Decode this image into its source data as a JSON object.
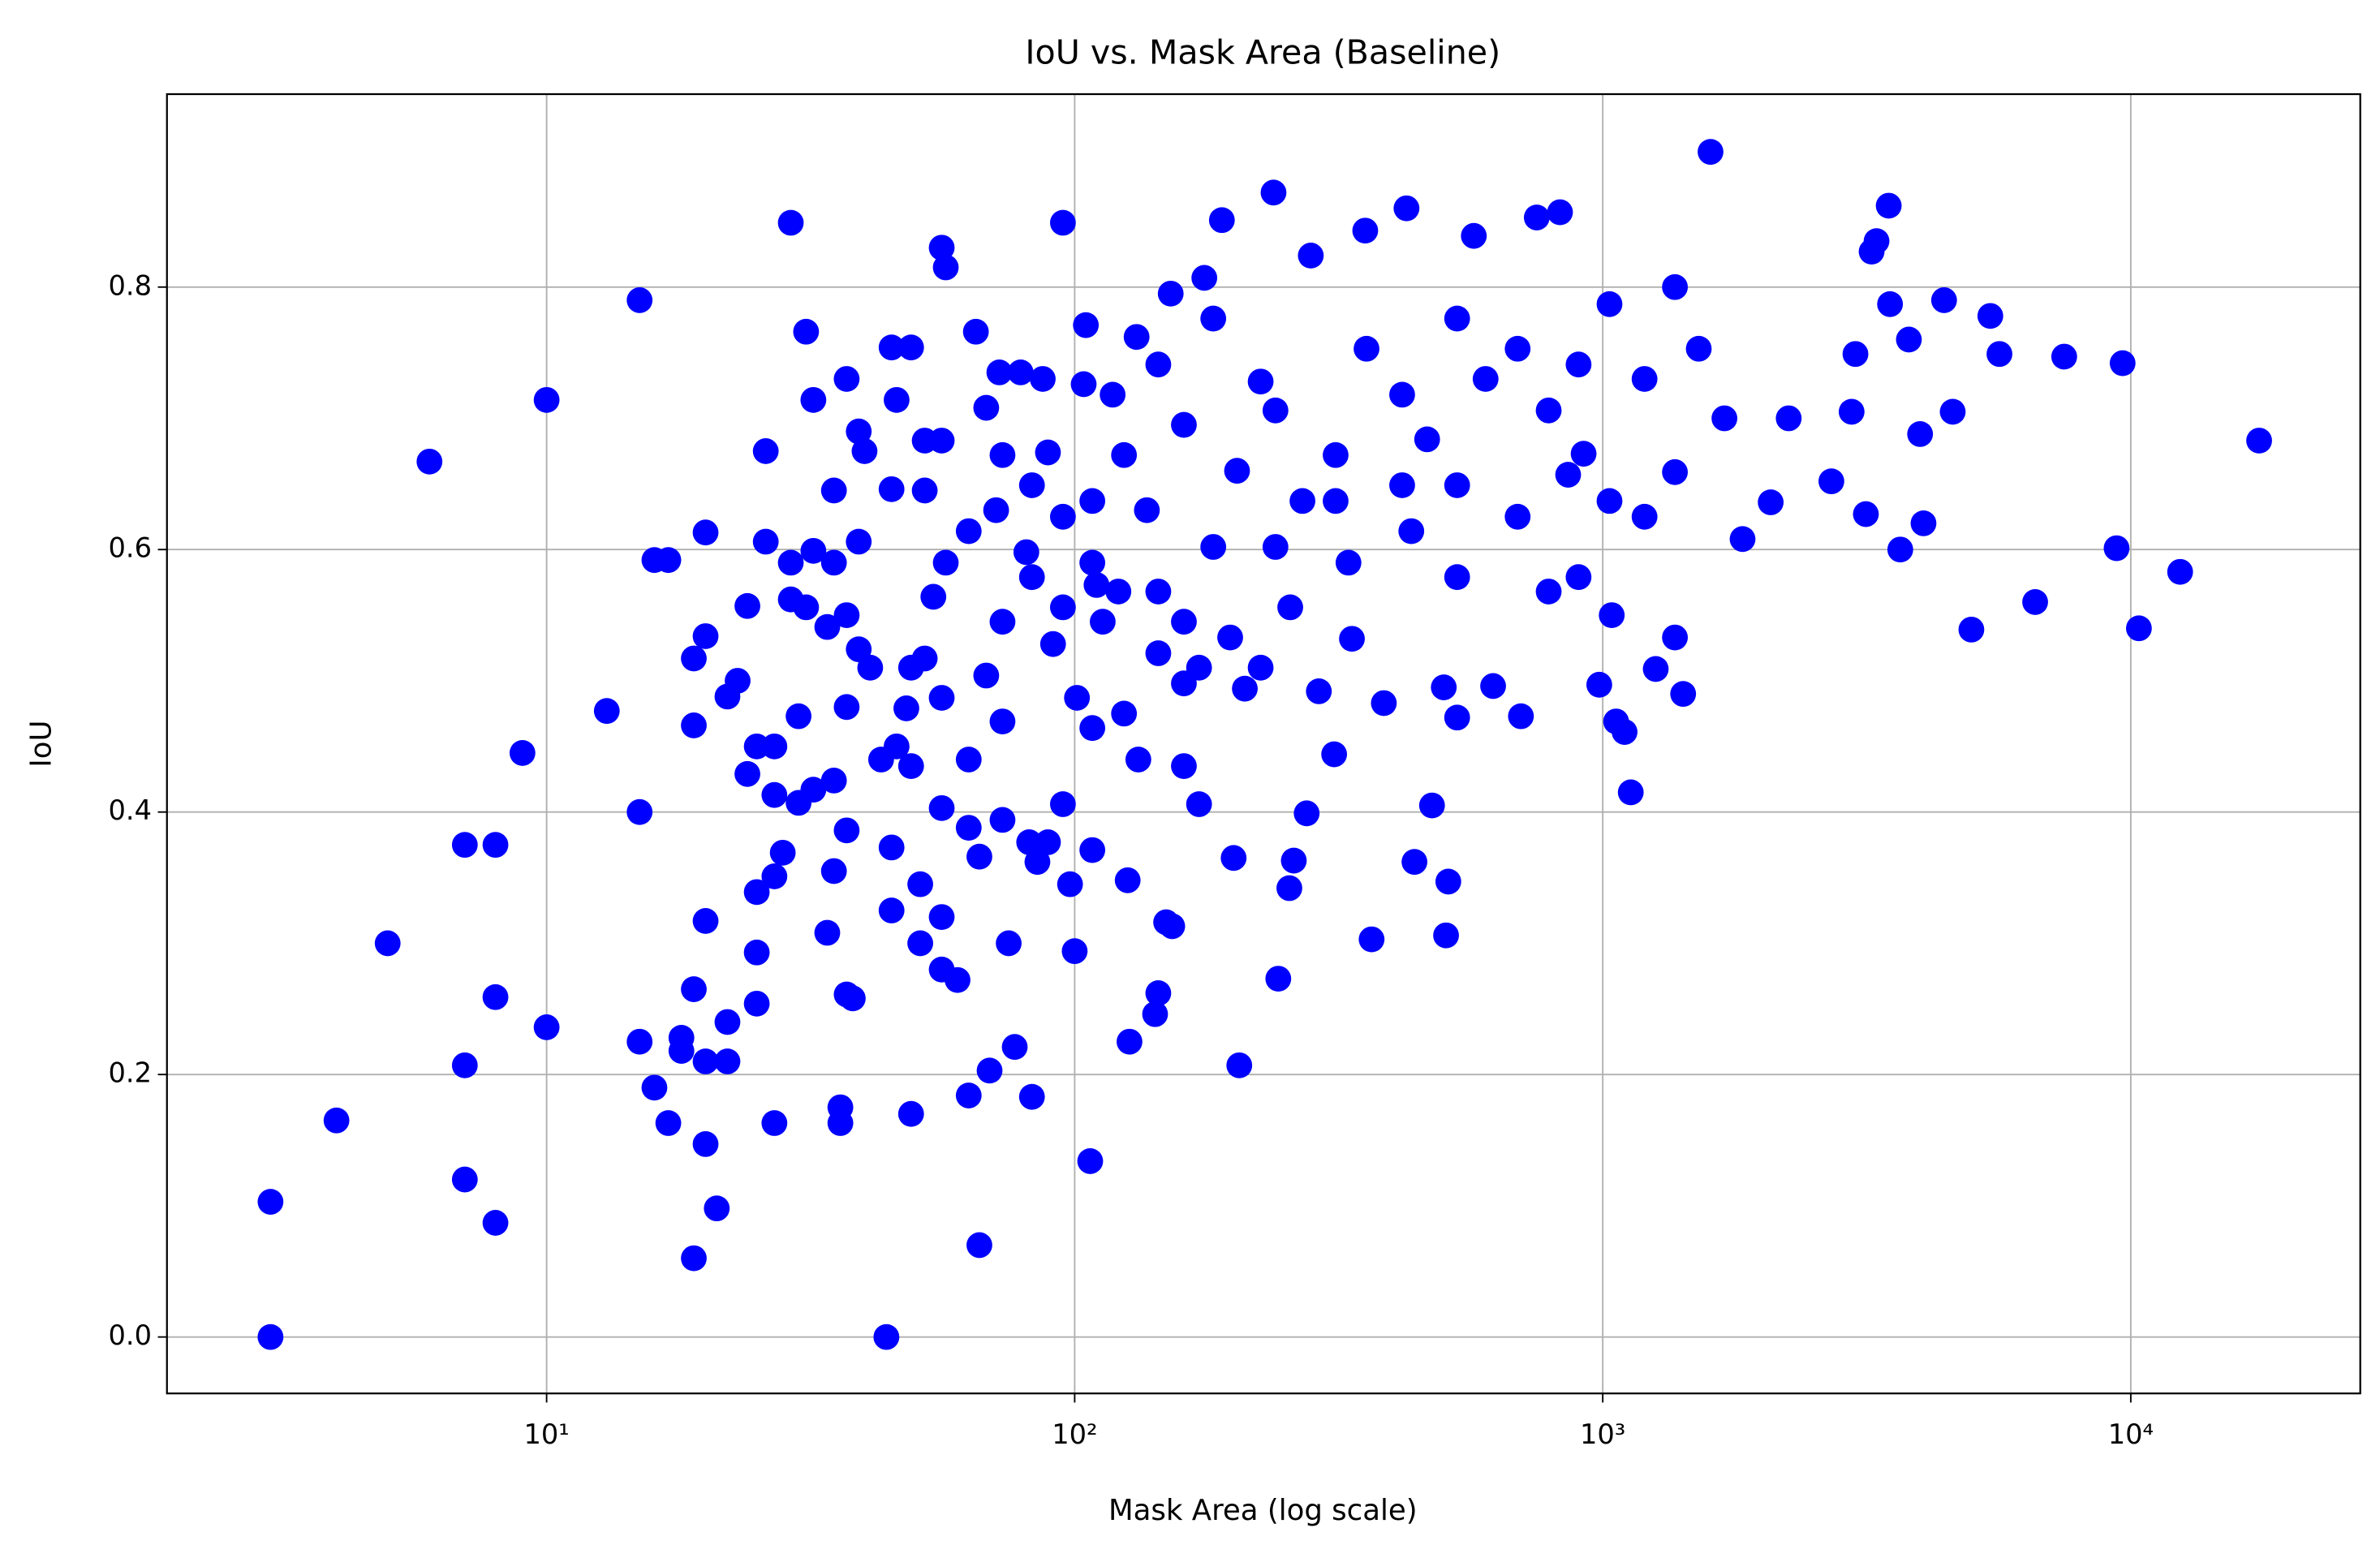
{
  "chart_data": {
    "type": "scatter",
    "title": "IoU vs. Mask Area (Baseline)",
    "xlabel": "Mask Area (log scale)",
    "ylabel": "IoU",
    "xscale": "log",
    "grid": true,
    "color": "#0000ff",
    "xlim": [
      1.91,
      27200
    ],
    "ylim": [
      -0.043,
      0.947
    ],
    "xticks": [
      {
        "value": 10,
        "label": "10¹"
      },
      {
        "value": 100,
        "label": "10²"
      },
      {
        "value": 1000,
        "label": "10³"
      },
      {
        "value": 10000,
        "label": "10⁴"
      }
    ],
    "yticks": [
      {
        "value": 0,
        "label": "0.0"
      },
      0.2,
      0.4,
      0.6,
      0.8
    ],
    "x": [
      3,
      3,
      4,
      5,
      6,
      7,
      7,
      7,
      8,
      8,
      8,
      9,
      10,
      10,
      13,
      15,
      15,
      15,
      16,
      17,
      16,
      17,
      18,
      18,
      19,
      19,
      19,
      19,
      20,
      20,
      20,
      20,
      20,
      21,
      22,
      22,
      22,
      23,
      24,
      24,
      25,
      25,
      25,
      25,
      26,
      26,
      27,
      27,
      27,
      27,
      28,
      29,
      29,
      29,
      30,
      30,
      31,
      31,
      32,
      32,
      32,
      34,
      34,
      35,
      35,
      35,
      35,
      36,
      36,
      37,
      37,
      37,
      37,
      37,
      38,
      39,
      39,
      39,
      40,
      41,
      44,
      45,
      45,
      45,
      45,
      46,
      46,
      48,
      49,
      49,
      49,
      51,
      51,
      52,
      52,
      52,
      54,
      56,
      56,
      56,
      56,
      56,
      57,
      57,
      60,
      63,
      63,
      65,
      66,
      66,
      68,
      68,
      69,
      71,
      72,
      73,
      75,
      77,
      79,
      81,
      82,
      83,
      85,
      87,
      89,
      89,
      91,
      95,
      98,
      100,
      101,
      104,
      105,
      107,
      110,
      113,
      118,
      121,
      126,
      127,
      131,
      137,
      142,
      144,
      149,
      153,
      152,
      161,
      172,
      176,
      190,
      200,
      205,
      210,
      225,
      238,
      243,
      255,
      260,
      275,
      280,
      290,
      310,
      335,
      355,
      365,
      385,
      425,
      440,
      475,
      500,
      510,
      505,
      530,
      570,
      620,
      700,
      750,
      830,
      860,
      920,
      985,
      1040,
      1060,
      1100,
      1130,
      1260,
      1420,
      1600,
      1700,
      1840,
      2080,
      2250,
      2710,
      2960,
      3010,
      3150,
      3230,
      3300,
      3480,
      3500,
      3660,
      3800,
      3990,
      4050,
      4430,
      4600,
      4990,
      5420,
      5640,
      6590,
      7480,
      9400,
      9650,
      10360,
      12400,
      17500,
      108,
      124,
      144,
      161,
      183,
      203,
      240,
      270,
      312,
      357,
      417,
      465,
      530,
      600,
      690,
      790,
      900,
      1030,
      1200,
      1370,
      1520,
      690,
      790,
      530,
      434,
      330,
      256,
      197,
      161,
      144,
      124,
      108,
      95,
      83,
      73,
      63,
      73,
      83,
      95,
      108,
      144,
      183,
      240,
      312,
      417,
      530,
      900,
      1200,
      1370,
      1030,
      1370,
      56,
      49,
      43,
      63,
      73,
      95,
      108,
      132,
      161,
      172,
      225
    ],
    "y": [
      0.103,
      0,
      0.165,
      0.3,
      0.667,
      0.375,
      0.207,
      0.12,
      0.375,
      0.259,
      0.087,
      0.445,
      0.714,
      0.236,
      0.477,
      0.79,
      0.4,
      0.225,
      0.592,
      0.592,
      0.19,
      0.163,
      0.228,
      0.218,
      0.517,
      0.466,
      0.265,
      0.06,
      0.613,
      0.534,
      0.317,
      0.21,
      0.147,
      0.098,
      0.21,
      0.24,
      0.488,
      0.5,
      0.429,
      0.557,
      0.339,
      0.293,
      0.254,
      0.45,
      0.675,
      0.606,
      0.45,
      0.413,
      0.351,
      0.163,
      0.369,
      0.849,
      0.59,
      0.562,
      0.473,
      0.407,
      0.766,
      0.556,
      0.714,
      0.599,
      0.417,
      0.541,
      0.308,
      0.645,
      0.59,
      0.424,
      0.355,
      0.175,
      0.163,
      0.73,
      0.55,
      0.48,
      0.386,
      0.261,
      0.258,
      0.69,
      0.606,
      0.524,
      0.675,
      0.51,
      0,
      0.754,
      0.646,
      0.373,
      0.325,
      0.714,
      0.45,
      0.479,
      0.754,
      0.435,
      0.17,
      0.345,
      0.3,
      0.683,
      0.645,
      0.517,
      0.564,
      0.83,
      0.683,
      0.403,
      0.32,
      0.28,
      0.815,
      0.59,
      0.272,
      0.388,
      0.184,
      0.766,
      0.07,
      0.366,
      0.708,
      0.504,
      0.203,
      0.63,
      0.735,
      0.469,
      0.3,
      0.221,
      0.735,
      0.598,
      0.377,
      0.183,
      0.362,
      0.73,
      0.377,
      0.674,
      0.528,
      0.849,
      0.345,
      0.294,
      0.487,
      0.726,
      0.771,
      0.134,
      0.573,
      0.545,
      0.718,
      0.568,
      0.348,
      0.225,
      0.762,
      0.63,
      0.246,
      0.262,
      0.316,
      0.313,
      0.795,
      0.435,
      0.406,
      0.807,
      0.851,
      0.365,
      0.207,
      0.494,
      0.728,
      0.872,
      0.273,
      0.342,
      0.363,
      0.399,
      0.824,
      0.492,
      0.444,
      0.532,
      0.843,
      0.303,
      0.483,
      0.86,
      0.362,
      0.405,
      0.495,
      0.347,
      0.306,
      0.472,
      0.839,
      0.496,
      0.473,
      0.853,
      0.857,
      0.657,
      0.673,
      0.497,
      0.55,
      0.469,
      0.461,
      0.415,
      0.509,
      0.49,
      0.903,
      0.7,
      0.608,
      0.636,
      0.7,
      0.652,
      0.705,
      0.749,
      0.627,
      0.827,
      0.835,
      0.862,
      0.787,
      0.6,
      0.76,
      0.688,
      0.62,
      0.79,
      0.705,
      0.539,
      0.778,
      0.749,
      0.56,
      0.747,
      0.601,
      0.742,
      0.54,
      0.583,
      0.683,
      0.637,
      0.672,
      0.741,
      0.695,
      0.776,
      0.66,
      0.706,
      0.637,
      0.672,
      0.753,
      0.718,
      0.684,
      0.776,
      0.73,
      0.753,
      0.706,
      0.741,
      0.787,
      0.73,
      0.8,
      0.753,
      0.625,
      0.568,
      0.649,
      0.614,
      0.59,
      0.556,
      0.533,
      0.498,
      0.521,
      0.475,
      0.464,
      0.556,
      0.579,
      0.545,
      0.614,
      0.672,
      0.649,
      0.625,
      0.59,
      0.568,
      0.602,
      0.602,
      0.637,
      0.649,
      0.579,
      0.579,
      0.625,
      0.533,
      0.637,
      0.659,
      0.487,
      0.51,
      0.44,
      0.44,
      0.394,
      0.406,
      0.371,
      0.44,
      0.545,
      0.51,
      0.51
    ]
  }
}
